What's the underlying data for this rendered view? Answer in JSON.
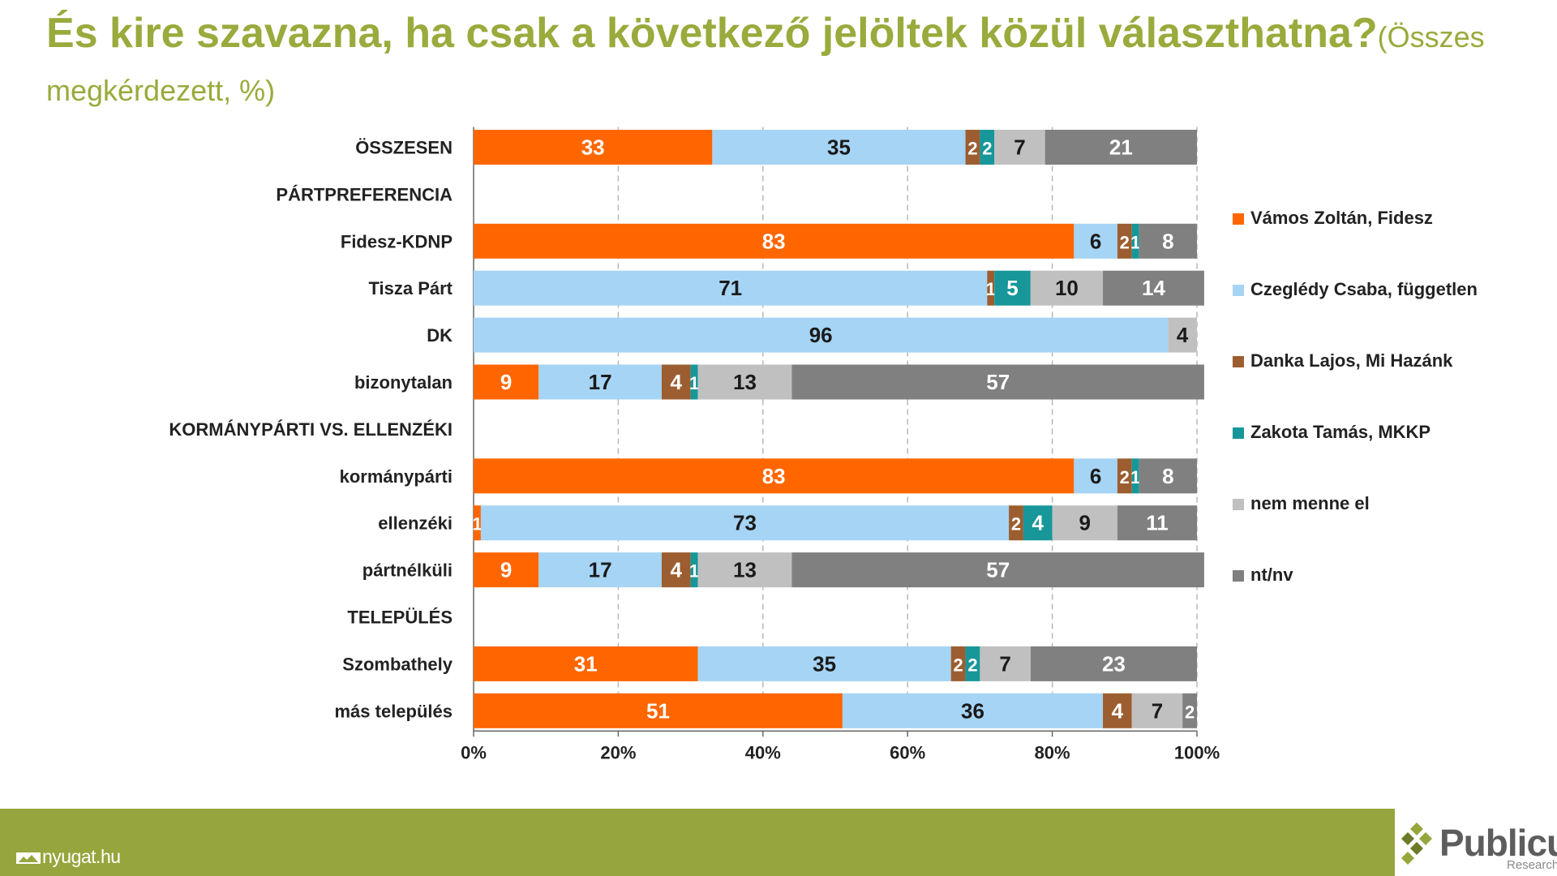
{
  "title": {
    "main": "És kire szavazna, ha csak a következő jelöltek közül választhatna?",
    "sub": "(Összes megkérdezett, %)"
  },
  "chart_data": {
    "type": "bar",
    "orientation": "horizontal",
    "stacked": true,
    "xlim": [
      0,
      100
    ],
    "x_ticks": [
      "0%",
      "20%",
      "40%",
      "60%",
      "80%",
      "100%"
    ],
    "grid": "vertical dashed",
    "legend_position": "right",
    "series": [
      {
        "name": "Vámos Zoltán, Fidesz",
        "color": "#ff6600"
      },
      {
        "name": "Czeglédy Csaba, független",
        "color": "#a6d4f5"
      },
      {
        "name": "Danka Lajos, Mi Hazánk",
        "color": "#9c5e30"
      },
      {
        "name": "Zakota Tamás, MKKP",
        "color": "#17979a"
      },
      {
        "name": "nem menne el",
        "color": "#c0c0c0"
      },
      {
        "name": "nt/nv",
        "color": "#808080"
      }
    ],
    "rows": [
      {
        "label": "ÖSSZESEN",
        "values": [
          33,
          35,
          2,
          2,
          7,
          21
        ]
      },
      {
        "label": "PÁRTPREFERENCIA",
        "values": null
      },
      {
        "label": "Fidesz-KDNP",
        "values": [
          83,
          6,
          2,
          1,
          0,
          8
        ]
      },
      {
        "label": "Tisza Párt",
        "values": [
          0,
          71,
          1,
          5,
          10,
          14
        ]
      },
      {
        "label": "DK",
        "values": [
          0,
          96,
          0,
          0,
          4,
          0
        ]
      },
      {
        "label": "bizonytalan",
        "values": [
          9,
          17,
          4,
          1,
          13,
          57
        ]
      },
      {
        "label": "KORMÁNYPÁRTI VS. ELLENZÉKI",
        "values": null
      },
      {
        "label": "kormánypárti",
        "values": [
          83,
          6,
          2,
          1,
          0,
          8
        ]
      },
      {
        "label": "ellenzéki",
        "values": [
          1,
          73,
          2,
          4,
          9,
          11
        ]
      },
      {
        "label": "pártnélküli",
        "values": [
          9,
          17,
          4,
          1,
          13,
          57
        ]
      },
      {
        "label": "TELEPÜLÉS",
        "values": null
      },
      {
        "label": "Szombathely",
        "values": [
          31,
          35,
          2,
          2,
          7,
          23
        ]
      },
      {
        "label": "más település",
        "values": [
          51,
          36,
          4,
          0,
          7,
          2
        ]
      }
    ]
  },
  "footer": {
    "site": "nyugat.hu",
    "logo_name": "Publicus",
    "logo_tagline": "Research"
  }
}
